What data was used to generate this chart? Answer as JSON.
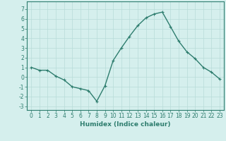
{
  "x": [
    0,
    1,
    2,
    3,
    4,
    5,
    6,
    7,
    8,
    9,
    10,
    11,
    12,
    13,
    14,
    15,
    16,
    17,
    18,
    19,
    20,
    21,
    22,
    23
  ],
  "y": [
    1.0,
    0.7,
    0.7,
    0.1,
    -0.3,
    -1.0,
    -1.2,
    -1.4,
    -2.5,
    -0.9,
    1.7,
    3.0,
    4.2,
    5.3,
    6.1,
    6.5,
    6.7,
    5.2,
    3.7,
    2.6,
    1.9,
    1.0,
    0.5,
    -0.2
  ],
  "line_color": "#2e7d6e",
  "marker": "+",
  "marker_size": 3,
  "linewidth": 1.0,
  "bg_color": "#d5efed",
  "grid_color": "#b8dbd8",
  "xlabel": "Humidex (Indice chaleur)",
  "xlim": [
    -0.5,
    23.5
  ],
  "ylim": [
    -3.4,
    7.8
  ],
  "xticks": [
    0,
    1,
    2,
    3,
    4,
    5,
    6,
    7,
    8,
    9,
    10,
    11,
    12,
    13,
    14,
    15,
    16,
    17,
    18,
    19,
    20,
    21,
    22,
    23
  ],
  "yticks": [
    -3,
    -2,
    -1,
    0,
    1,
    2,
    3,
    4,
    5,
    6,
    7
  ],
  "xlabel_fontsize": 6.5,
  "tick_fontsize": 5.5
}
